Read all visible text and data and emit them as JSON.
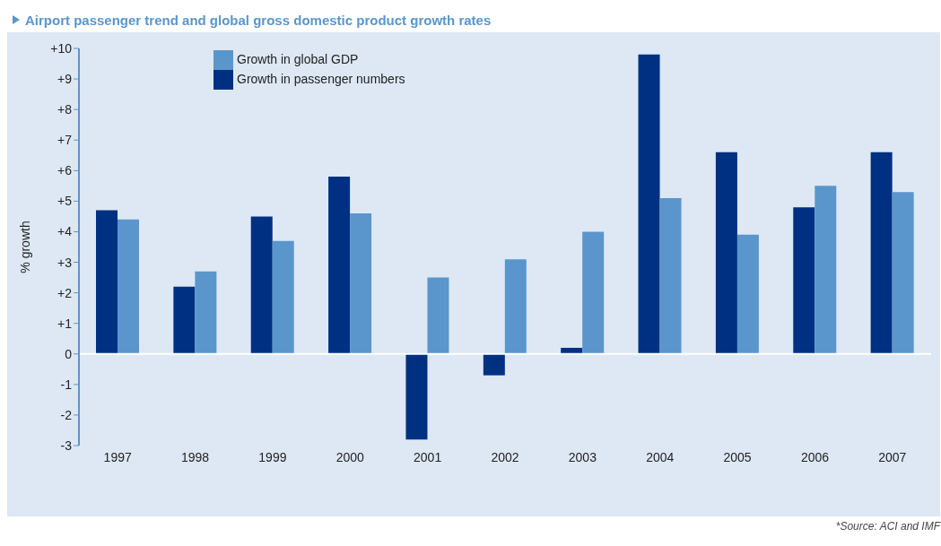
{
  "chart_data": {
    "type": "bar",
    "title": "Airport passenger trend and global gross domestic product growth rates",
    "ylabel": "% growth",
    "categories": [
      "1997",
      "1998",
      "1999",
      "2000",
      "2001",
      "2002",
      "2003",
      "2004",
      "2005",
      "2006",
      "2007"
    ],
    "series": [
      {
        "name": "Growth in passenger numbers",
        "color": "#003082",
        "values": [
          4.7,
          2.2,
          4.5,
          5.8,
          -2.8,
          -0.7,
          0.2,
          9.8,
          6.6,
          4.8,
          6.6
        ]
      },
      {
        "name": "Growth in global GDP",
        "color": "#5a96cc",
        "values": [
          4.4,
          2.7,
          3.7,
          4.6,
          2.5,
          3.1,
          4.0,
          5.1,
          3.9,
          5.5,
          5.3
        ]
      }
    ],
    "ylim": [
      -3,
      10
    ],
    "yticks": [
      {
        "value": -3,
        "label": "-3"
      },
      {
        "value": -2,
        "label": "-2"
      },
      {
        "value": -1,
        "label": "-1"
      },
      {
        "value": 0,
        "label": "0"
      },
      {
        "value": 1,
        "label": "+1"
      },
      {
        "value": 2,
        "label": "+2"
      },
      {
        "value": 3,
        "label": "+3"
      },
      {
        "value": 4,
        "label": "+4"
      },
      {
        "value": 5,
        "label": "+5"
      },
      {
        "value": 6,
        "label": "+6"
      },
      {
        "value": 7,
        "label": "+7"
      },
      {
        "value": 8,
        "label": "+8"
      },
      {
        "value": 9,
        "label": "+9"
      },
      {
        "value": 10,
        "label": "+10"
      }
    ],
    "ref_lines": [
      {
        "axis": "y",
        "value": 0,
        "color": "#ffffff"
      }
    ],
    "legend": "top left",
    "annotations": [
      "*Source: ACI and IMF"
    ]
  }
}
